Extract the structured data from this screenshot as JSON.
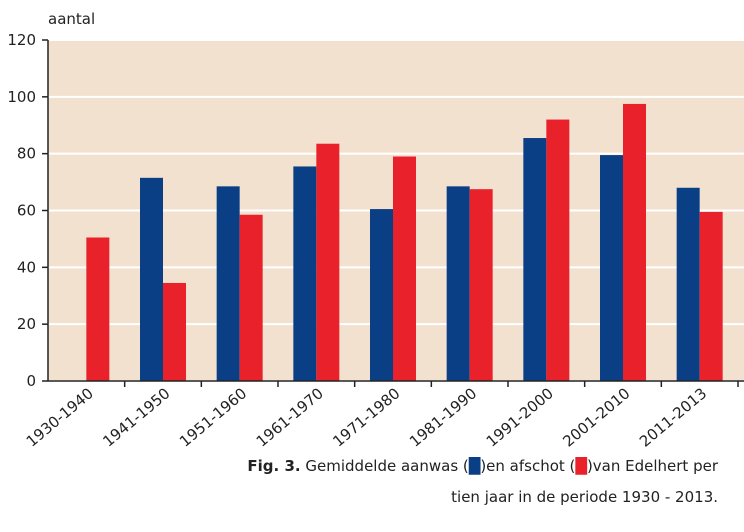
{
  "chart_data": {
    "type": "bar",
    "y_label": "aantal",
    "categories": [
      "1930-1940",
      "1941-1950",
      "1951-1960",
      "1961-1970",
      "1971-1980",
      "1981-1990",
      "1991-2000",
      "2001-2010",
      "2011-2013"
    ],
    "series": [
      {
        "color": "#0a3f86",
        "values": [
          null,
          71.5,
          68.5,
          75.5,
          60.5,
          68.5,
          85.5,
          79.5,
          68
        ]
      },
      {
        "color": "#e8212a",
        "values": [
          50.5,
          34.5,
          58.5,
          83.5,
          79,
          67.5,
          92,
          97.5,
          59.5
        ]
      }
    ],
    "ylim": [
      0,
      120
    ],
    "yticks": [
      0,
      20,
      40,
      60,
      80,
      100,
      120
    ],
    "grid": true,
    "background": "#f3e1d0",
    "caption": {
      "label": "Fig. 3.",
      "parts": [
        "Gemiddelde aanwas (",
        ")en afschot (",
        ")van Edelhert per",
        "tien jaar in de periode 1930 - 2013."
      ]
    }
  }
}
